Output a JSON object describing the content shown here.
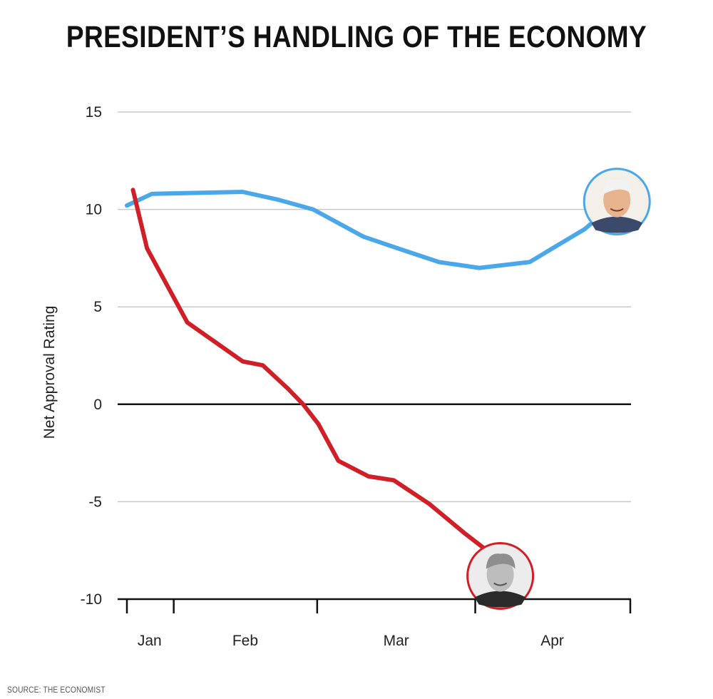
{
  "chart_data": {
    "type": "line",
    "title": "PRESIDENT’S HANDLING OF THE ECONOMY",
    "ylabel": "Net Approval Rating",
    "xlabel": "",
    "source": "SOURCE: THE ECONOMIST",
    "ylim": [
      -10,
      15
    ],
    "yticks": [
      "15",
      "10",
      "5",
      "0",
      "-5",
      "-10"
    ],
    "xticks": [
      "Jan",
      "Feb",
      "Mar",
      "Apr"
    ],
    "grid": true,
    "series": [
      {
        "avatar": "biden-photo-icon",
        "color": "#4aa8ea",
        "points": [
          [
            0.0,
            10.2
          ],
          [
            0.05,
            10.8
          ],
          [
            0.23,
            10.9
          ],
          [
            0.3,
            10.5
          ],
          [
            0.37,
            10.0
          ],
          [
            0.47,
            8.6
          ],
          [
            0.55,
            7.9
          ],
          [
            0.62,
            7.3
          ],
          [
            0.7,
            7.0
          ],
          [
            0.8,
            7.3
          ],
          [
            0.91,
            9.0
          ],
          [
            0.955,
            10.0
          ]
        ]
      },
      {
        "avatar": "trump-photo-icon",
        "color": "#d01f26",
        "points": [
          [
            0.012,
            11.0
          ],
          [
            0.04,
            8.0
          ],
          [
            0.12,
            4.2
          ],
          [
            0.23,
            2.2
          ],
          [
            0.27,
            2.0
          ],
          [
            0.32,
            0.8
          ],
          [
            0.35,
            0.0
          ],
          [
            0.38,
            -1.0
          ],
          [
            0.42,
            -2.9
          ],
          [
            0.48,
            -3.7
          ],
          [
            0.53,
            -3.9
          ],
          [
            0.6,
            -5.1
          ],
          [
            0.67,
            -6.6
          ],
          [
            0.72,
            -7.6
          ],
          [
            0.77,
            -8.7
          ]
        ]
      }
    ]
  }
}
